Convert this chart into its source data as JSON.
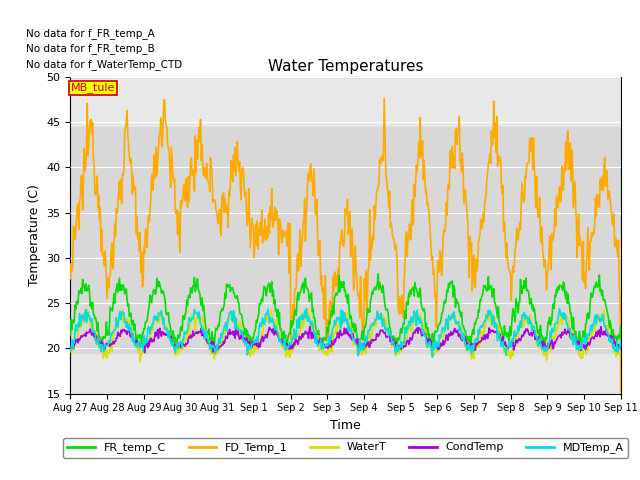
{
  "title": "Water Temperatures",
  "xlabel": "Time",
  "ylabel": "Temperature (C)",
  "ylim": [
    15,
    50
  ],
  "yticks": [
    15,
    20,
    25,
    30,
    35,
    40,
    45,
    50
  ],
  "background_color": "#ffffff",
  "plot_bg_color": "#e8e8e8",
  "shaded_region": [
    19.5,
    44.5
  ],
  "shaded_color": "#d8d8d8",
  "no_data_texts": [
    "No data for f_FR_temp_A",
    "No data for f_FR_temp_B",
    "No data for f_WaterTemp_CTD"
  ],
  "mb_tule_label": "MB_tule",
  "mb_tule_color": "#cc0000",
  "mb_tule_bg": "#ffff00",
  "xtick_labels": [
    "Aug 27",
    "Aug 28",
    "Aug 29",
    "Aug 30",
    "Aug 31",
    "Sep 1",
    "Sep 2",
    "Sep 3",
    "Sep 4",
    "Sep 5",
    "Sep 6",
    "Sep 7",
    "Sep 8",
    "Sep 9",
    "Sep 10",
    "Sep 11"
  ],
  "lines": {
    "FR_temp_C": {
      "color": "#00dd00",
      "lw": 1.2
    },
    "FD_Temp_1": {
      "color": "#ffaa00",
      "lw": 1.2
    },
    "WaterT": {
      "color": "#dddd00",
      "lw": 1.2
    },
    "CondTemp": {
      "color": "#aa00dd",
      "lw": 1.2
    },
    "MDTemp_A": {
      "color": "#00dddd",
      "lw": 1.2
    }
  }
}
